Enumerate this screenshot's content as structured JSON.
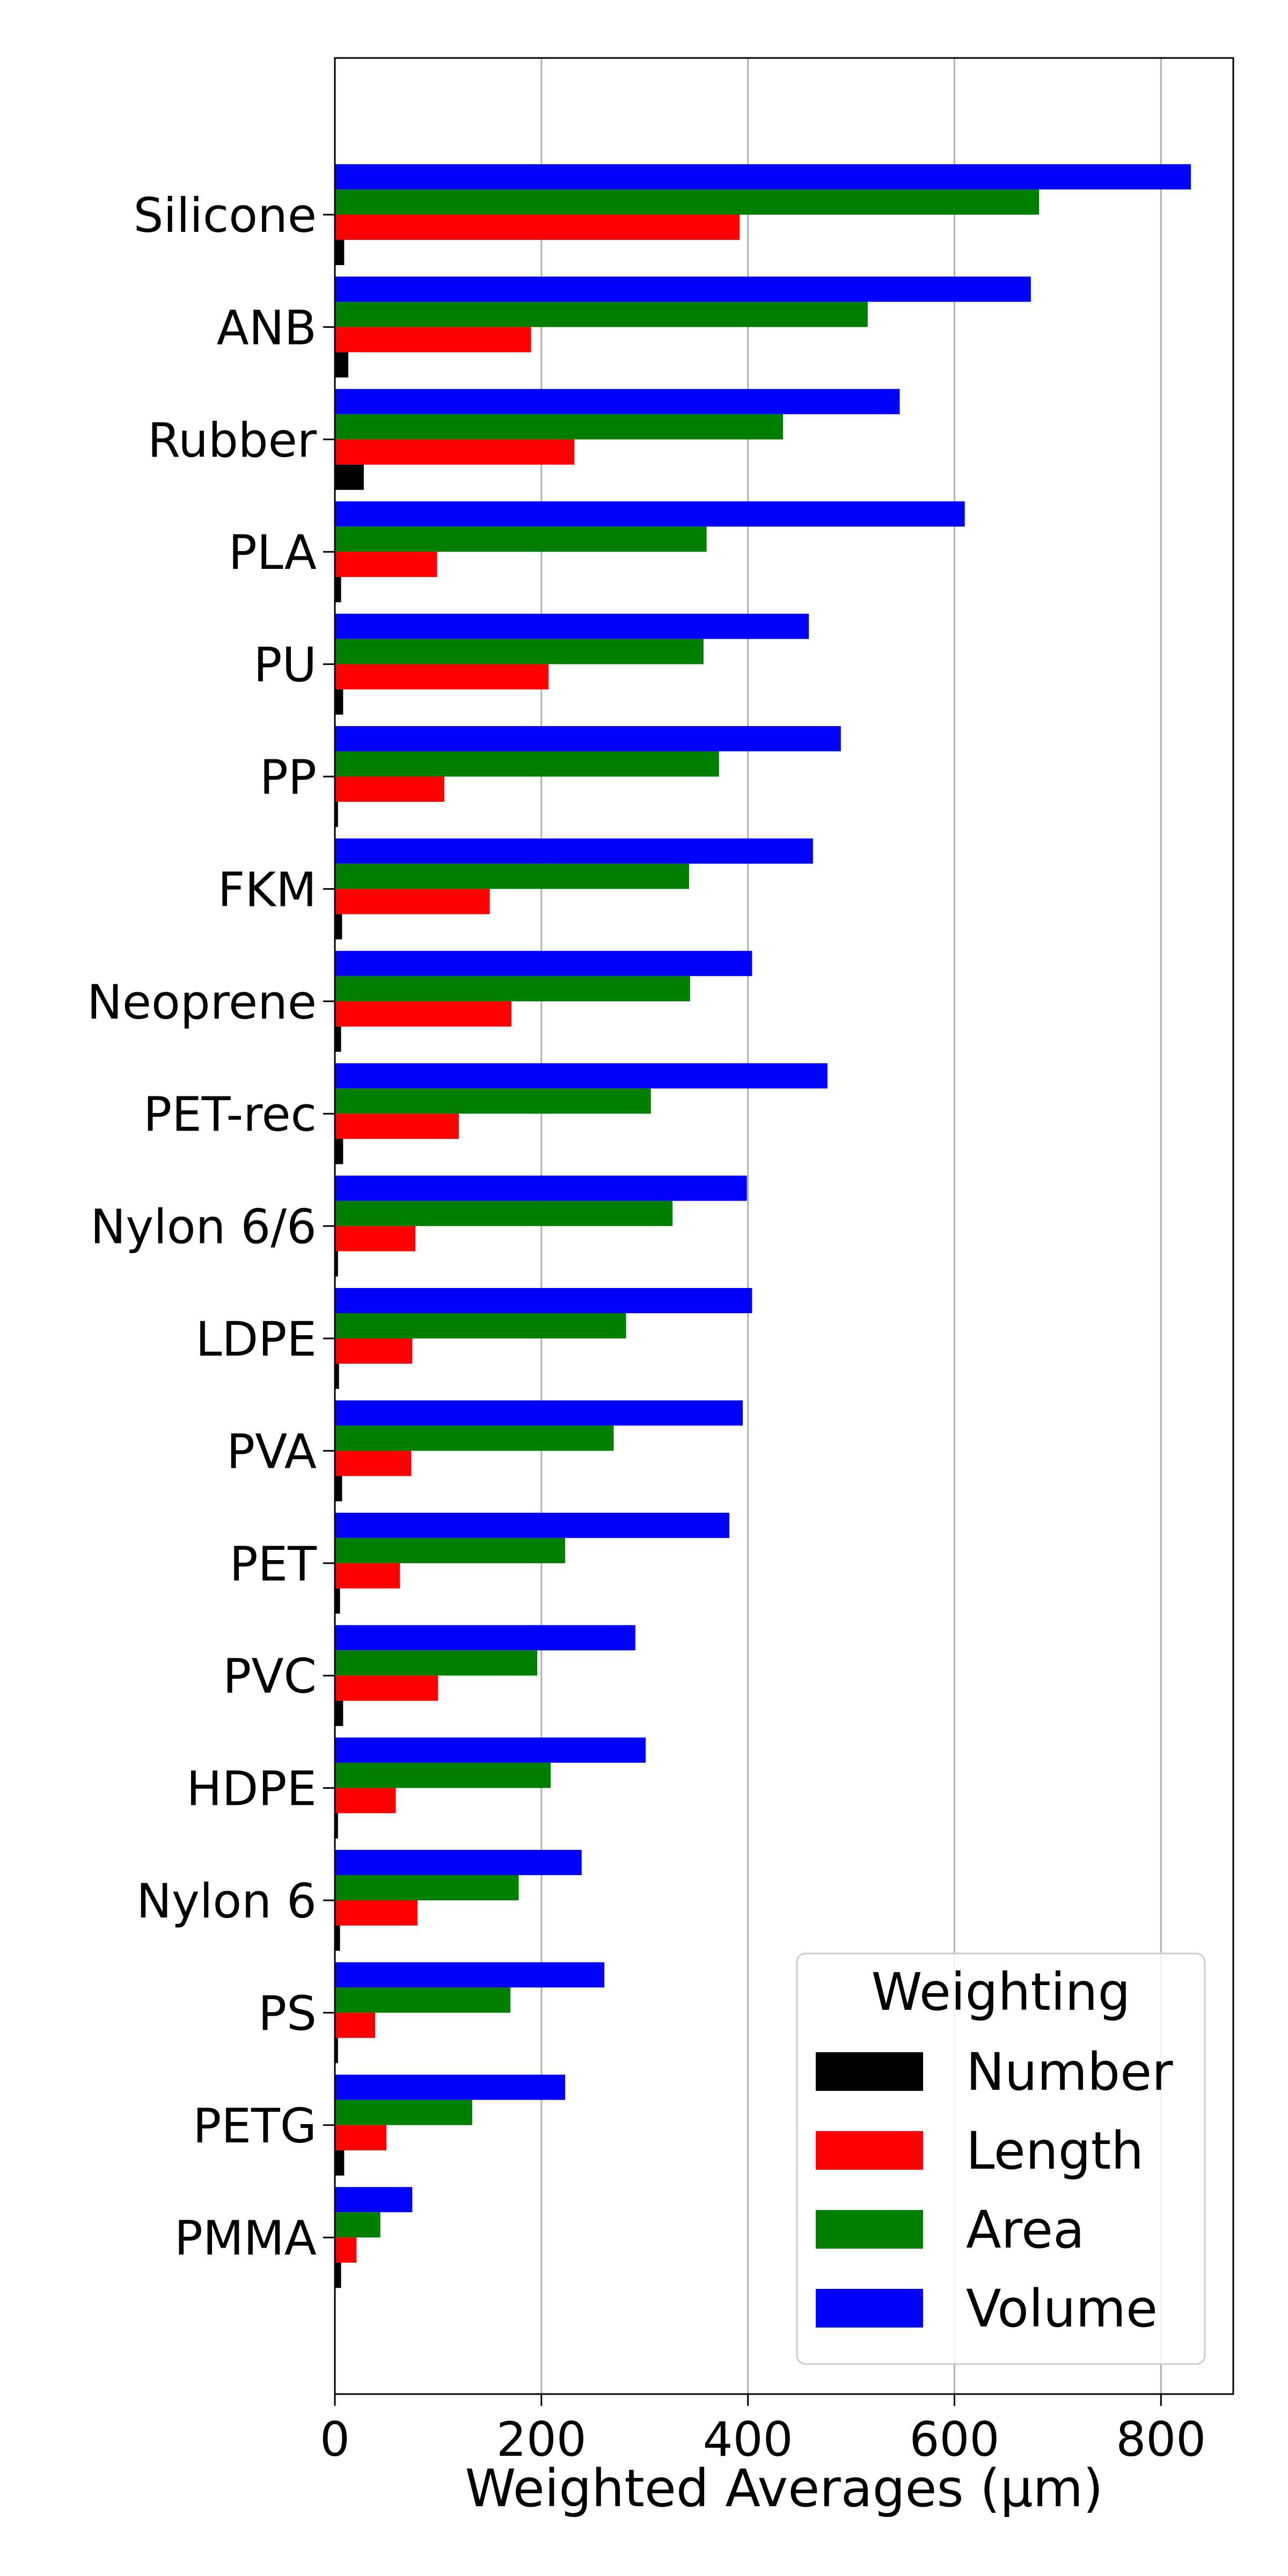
{
  "chart_data": {
    "type": "bar",
    "orientation": "horizontal",
    "xlabel": "Weighted Averages (µm)",
    "ylabel": "",
    "xlim": [
      0,
      870
    ],
    "xticks": [
      0,
      200,
      400,
      600,
      800
    ],
    "grid": "x",
    "categories": [
      "Silicone",
      "ANB",
      "Rubber",
      "PLA",
      "PU",
      "PP",
      "FKM",
      "Neoprene",
      "PET-rec",
      "Nylon 6/6",
      "LDPE",
      "PVA",
      "PET",
      "PVC",
      "HDPE",
      "Nylon 6",
      "PS",
      "PETG",
      "PMMA"
    ],
    "series": [
      {
        "name": "Number",
        "color": "#000000",
        "values": [
          9,
          13,
          28,
          6,
          8,
          3,
          7,
          6,
          8,
          3,
          4,
          7,
          5,
          8,
          3,
          5,
          3,
          9,
          6
        ]
      },
      {
        "name": "Length",
        "color": "#ff0000",
        "values": [
          392,
          190,
          232,
          99,
          207,
          106,
          150,
          171,
          120,
          78,
          75,
          74,
          63,
          100,
          59,
          80,
          39,
          50,
          21
        ]
      },
      {
        "name": "Area",
        "color": "#008000",
        "values": [
          682,
          516,
          434,
          360,
          357,
          372,
          343,
          344,
          306,
          327,
          282,
          270,
          223,
          196,
          209,
          178,
          170,
          133,
          44
        ]
      },
      {
        "name": "Volume",
        "color": "#0000ff",
        "values": [
          829,
          674,
          547,
          610,
          459,
          490,
          463,
          404,
          477,
          399,
          404,
          395,
          382,
          291,
          301,
          239,
          261,
          223,
          75
        ]
      }
    ],
    "legend": {
      "title": "Weighting",
      "placement": "lower-right"
    }
  }
}
